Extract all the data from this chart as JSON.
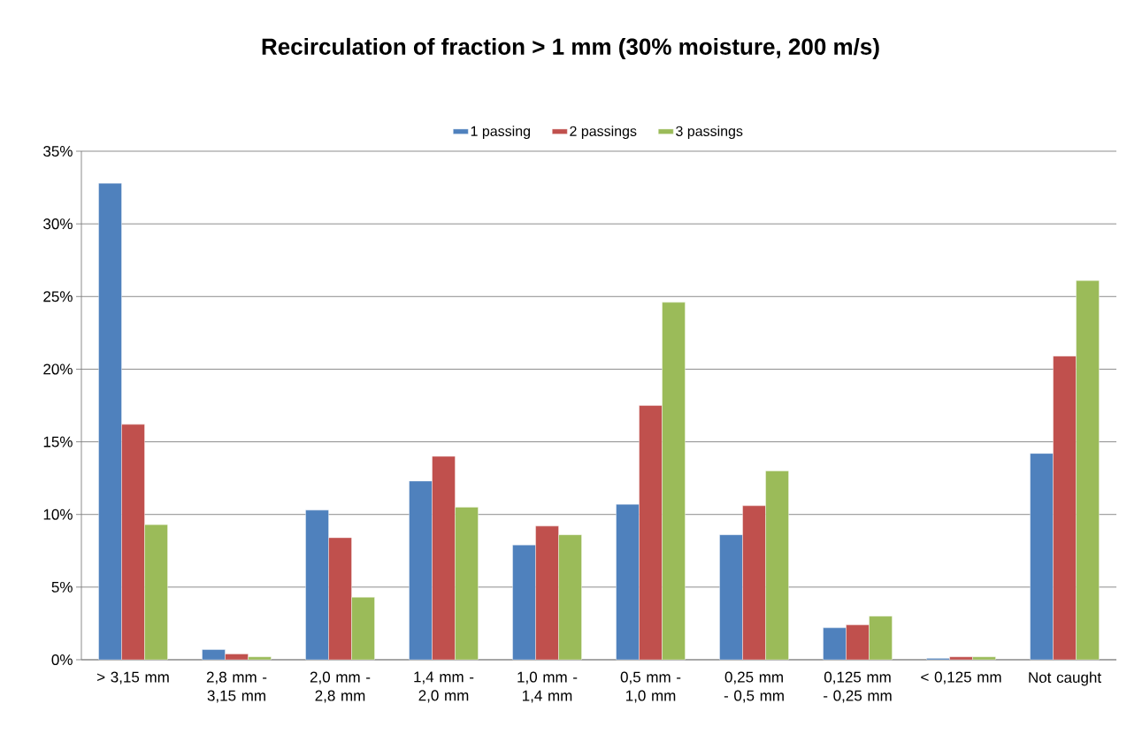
{
  "chart_data": {
    "type": "bar",
    "title": "Recirculation of fraction > 1 mm (30% moisture, 200 m/s)",
    "categories": [
      "> 3,15 mm",
      "2,8 mm - 3,15 mm",
      "2,0 mm - 2,8 mm",
      "1,4 mm - 2,0 mm",
      "1,0 mm - 1,4 mm",
      "0,5 mm - 1,0 mm",
      "0,25 mm - 0,5 mm",
      "0,125 mm - 0,25 mm",
      "< 0,125 mm",
      "Not caught"
    ],
    "series": [
      {
        "name": "1 passing",
        "color": "#4f81bd",
        "values": [
          32.8,
          0.7,
          10.3,
          12.3,
          7.9,
          10.7,
          8.6,
          2.2,
          0.1,
          14.2
        ]
      },
      {
        "name": "2 passings",
        "color": "#c0504d",
        "values": [
          16.2,
          0.4,
          8.4,
          14.0,
          9.2,
          17.5,
          10.6,
          2.4,
          0.2,
          20.9
        ]
      },
      {
        "name": "3 passings",
        "color": "#9bbb59",
        "values": [
          9.3,
          0.2,
          4.3,
          10.5,
          8.6,
          24.6,
          13.0,
          3.0,
          0.2,
          26.1
        ]
      }
    ],
    "ylim": [
      0,
      35
    ],
    "yticks": [
      {
        "value": 0,
        "label": "0%"
      },
      {
        "value": 5,
        "label": "5%"
      },
      {
        "value": 10,
        "label": "10%"
      },
      {
        "value": 15,
        "label": "15%"
      },
      {
        "value": 20,
        "label": "20%"
      },
      {
        "value": 25,
        "label": "25%"
      },
      {
        "value": 30,
        "label": "30%"
      },
      {
        "value": 35,
        "label": "35%"
      }
    ],
    "grid": "y",
    "legend": "top"
  }
}
